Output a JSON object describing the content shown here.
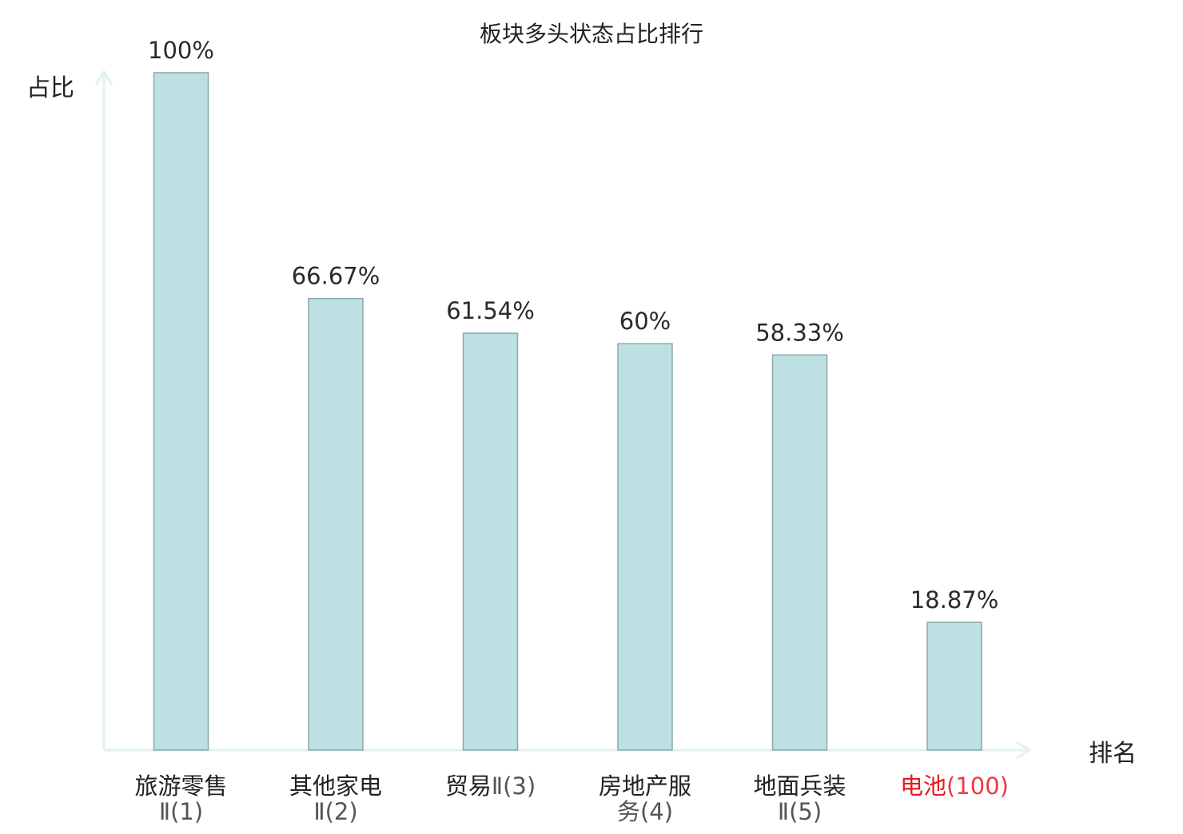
{
  "chart_data": {
    "type": "bar",
    "title": "板块多头状态占比排行",
    "ylabel": "占比",
    "xlabel": "排名",
    "ylim": [
      0,
      100
    ],
    "grid": false,
    "categories": [
      {
        "name": "旅游零售",
        "rank": "Ⅱ(1)",
        "highlight": false
      },
      {
        "name": "其他家电",
        "rank": "Ⅱ(2)",
        "highlight": false
      },
      {
        "name": "贸易",
        "rank": "Ⅱ(3)",
        "highlight": false
      },
      {
        "name": "房地产服",
        "rank": "务(4)",
        "highlight": false
      },
      {
        "name": "地面兵装",
        "rank": "Ⅱ(5)",
        "highlight": false
      },
      {
        "name": "电池",
        "rank": "(100)",
        "highlight": true
      }
    ],
    "values": [
      100,
      66.67,
      61.54,
      60,
      58.33,
      18.87
    ],
    "value_labels": [
      "100%",
      "66.67%",
      "61.54%",
      "60%",
      "58.33%",
      "18.87%"
    ]
  },
  "colors": {
    "bar_fill": "#bde0e3",
    "bar_stroke": "#8aa9ac",
    "axis": "#e0f2ef",
    "text": "#222222",
    "muted_text": "#555555",
    "highlight": "#e8171d"
  }
}
